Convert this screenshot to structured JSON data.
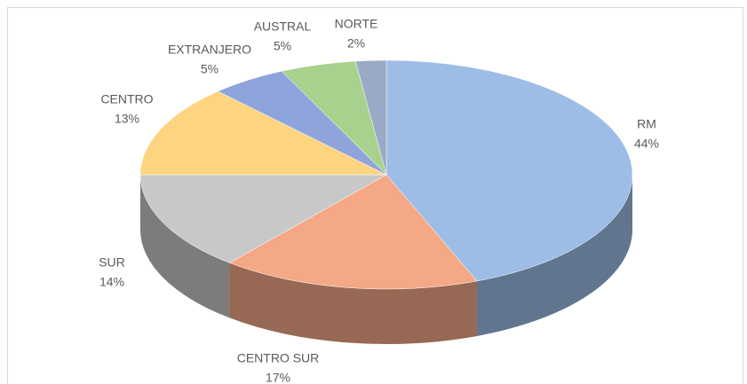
{
  "chart_data": {
    "type": "pie",
    "categories": [
      "RM",
      "CENTRO SUR",
      "SUR",
      "CENTRO",
      "EXTRANJERO",
      "AUSTRAL",
      "NORTE"
    ],
    "values": [
      44,
      17,
      14,
      13,
      5,
      5,
      2
    ],
    "value_labels": [
      "44%",
      "17%",
      "14%",
      "13%",
      "5%",
      "5%",
      "2%"
    ],
    "colors": [
      "#9dbde6",
      "#f4a886",
      "#c8c8c8",
      "#fdd47f",
      "#8fa4db",
      "#a9d18e",
      "#9aaac6"
    ]
  }
}
